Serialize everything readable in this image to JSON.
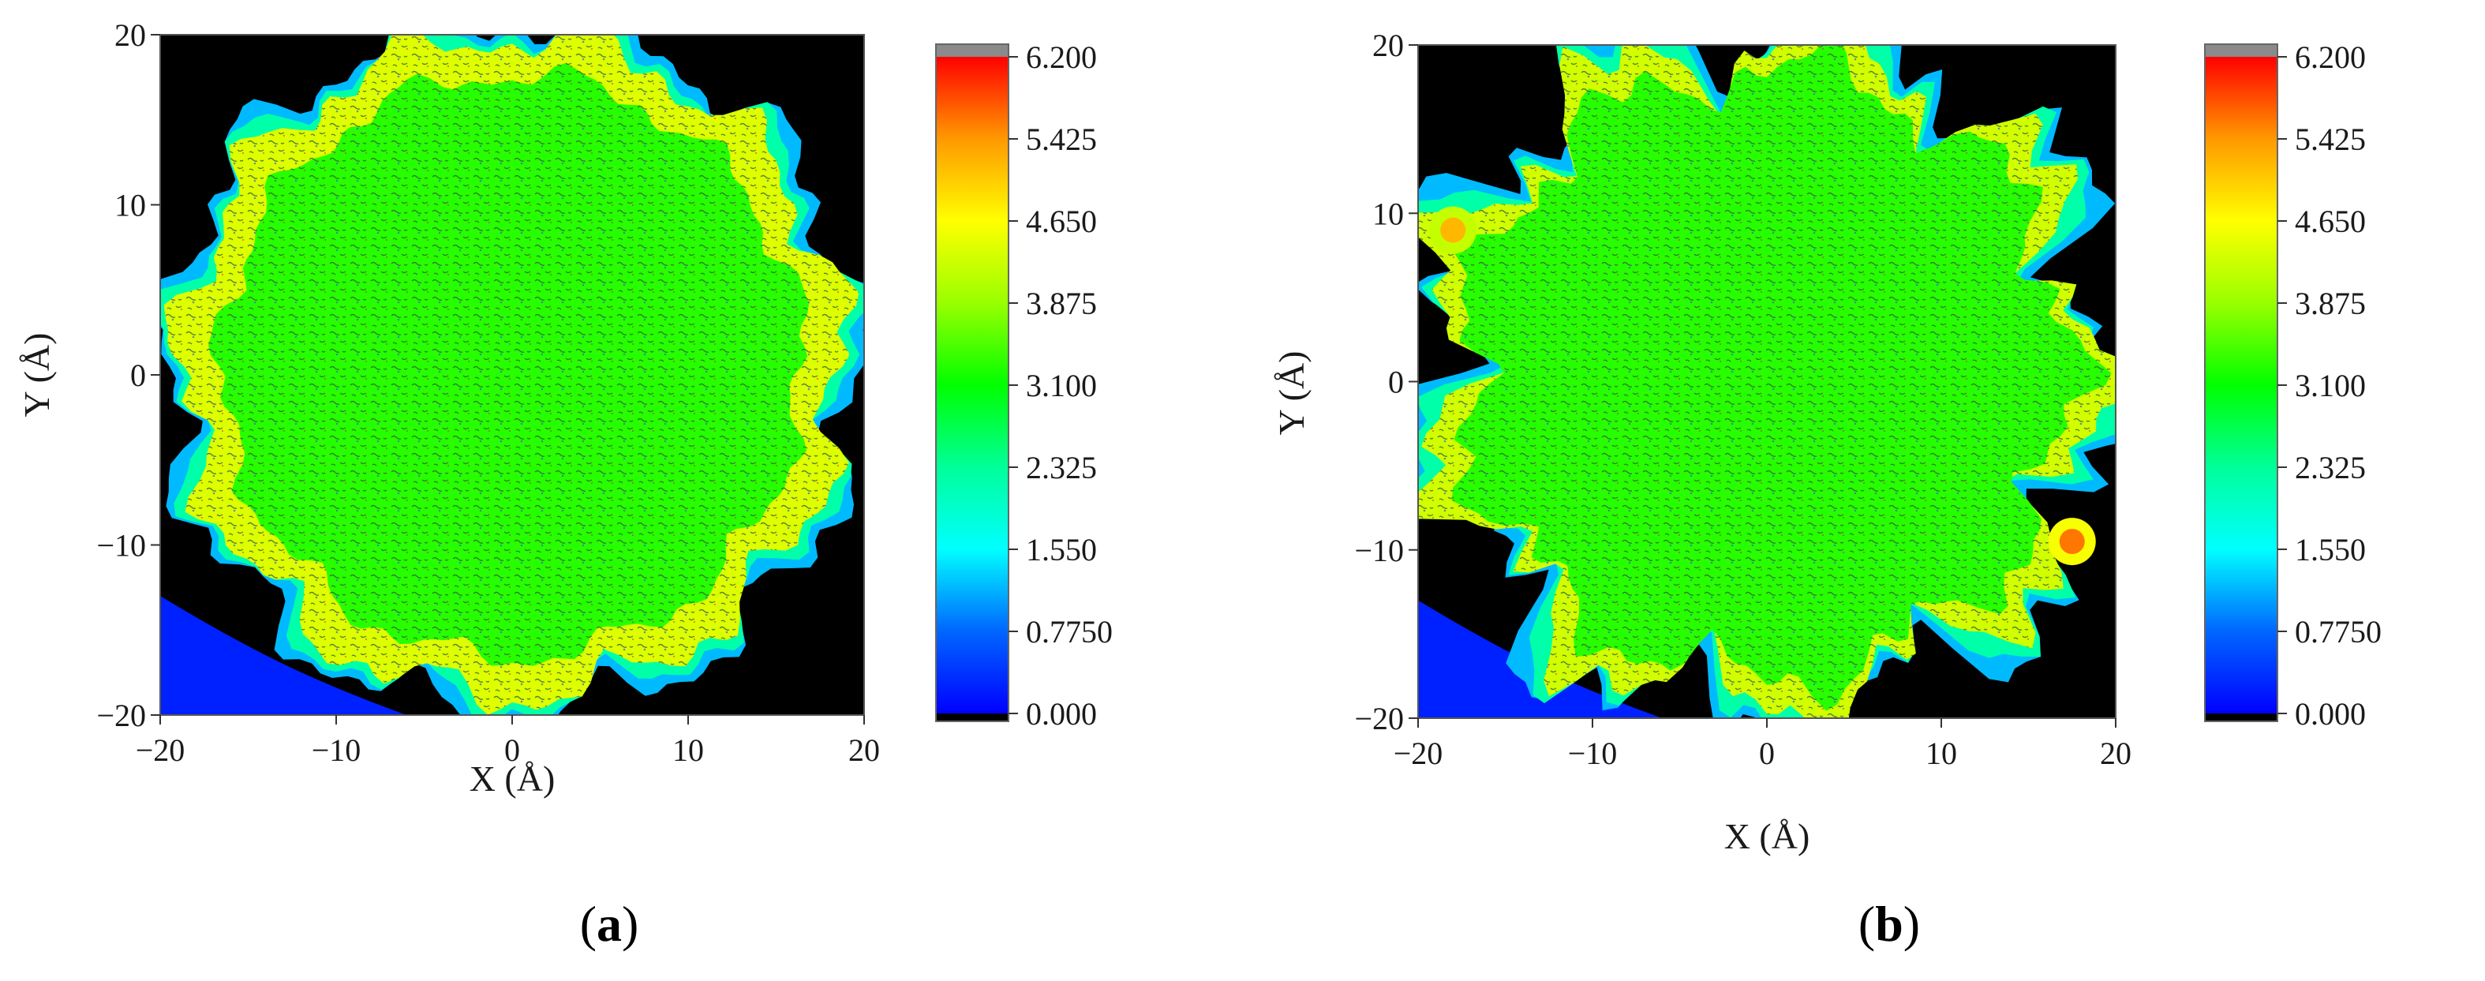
{
  "chart_data": [
    {
      "type": "heatmap",
      "panel_label": "a",
      "xlabel": "X (Å)",
      "ylabel": "Y (Å)",
      "xlim": [
        -20,
        20
      ],
      "ylim": [
        -20,
        20
      ],
      "x_ticks": [
        -20,
        -10,
        0,
        10,
        20
      ],
      "y_ticks": [
        -20,
        -10,
        0,
        10,
        20
      ],
      "x_tick_labels": [
        "−20",
        "−10",
        "0",
        "10",
        "20"
      ],
      "y_tick_labels": [
        "−20",
        "−10",
        "0",
        "10",
        "20"
      ],
      "colorbar": {
        "min": 0.0,
        "max": 6.2,
        "tick_values": [
          0.0,
          0.775,
          1.55,
          2.325,
          3.1,
          3.875,
          4.65,
          5.425,
          6.2
        ],
        "tick_labels": [
          "0.000",
          "0.7750",
          "1.550",
          "2.325",
          "3.100",
          "3.875",
          "4.650",
          "5.425",
          "6.200"
        ]
      },
      "interior_value": 3.3,
      "rim_value": 4.4,
      "background_value": 0.0,
      "hotspots": [],
      "grid": false,
      "legend": "colorbar-right"
    },
    {
      "type": "heatmap",
      "panel_label": "b",
      "xlabel": "X (Å)",
      "ylabel": "Y (Å)",
      "xlim": [
        -20,
        20
      ],
      "ylim": [
        -20,
        20
      ],
      "x_ticks": [
        -20,
        -10,
        0,
        10,
        20
      ],
      "y_ticks": [
        -20,
        -10,
        0,
        10,
        20
      ],
      "x_tick_labels": [
        "−20",
        "−10",
        "0",
        "10",
        "20"
      ],
      "y_tick_labels": [
        "−20",
        "−10",
        "0",
        "10",
        "20"
      ],
      "colorbar": {
        "min": 0.0,
        "max": 6.2,
        "tick_values": [
          0.0,
          0.775,
          1.55,
          2.325,
          3.1,
          3.875,
          4.65,
          5.425,
          6.2
        ],
        "tick_labels": [
          "0.000",
          "0.7750",
          "1.550",
          "2.325",
          "3.100",
          "3.875",
          "4.650",
          "5.425",
          "6.200"
        ]
      },
      "interior_value": 3.3,
      "rim_value": 4.3,
      "background_value": 0.0,
      "hotspots": [
        {
          "x": 17.5,
          "y": -9.5,
          "value": 5.6
        },
        {
          "x": -18.0,
          "y": 9.0,
          "value": 5.2
        }
      ],
      "grid": false,
      "legend": "colorbar-right"
    }
  ]
}
